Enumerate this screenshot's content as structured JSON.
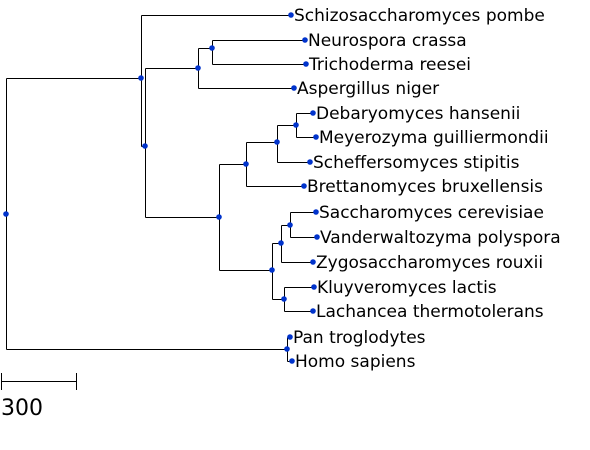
{
  "tree": {
    "node_color": "#0033cc",
    "line_color": "#000000",
    "scale_bar_label": "300",
    "leaves": [
      "Schizosaccharomyces pombe",
      "Neurospora crassa",
      "Trichoderma reesei",
      "Aspergillus niger",
      "Debaryomyces hansenii",
      "Meyerozyma guilliermondii",
      "Scheffersomyces stipitis",
      "Brettanomyces bruxellensis",
      "Saccharomyces cerevisiae",
      "Vanderwaltozyma polyspora",
      "Zygosaccharomyces rouxii",
      "Kluyveromyces lactis",
      "Lachancea thermotolerans",
      "Pan troglodytes",
      "Homo sapiens"
    ]
  }
}
